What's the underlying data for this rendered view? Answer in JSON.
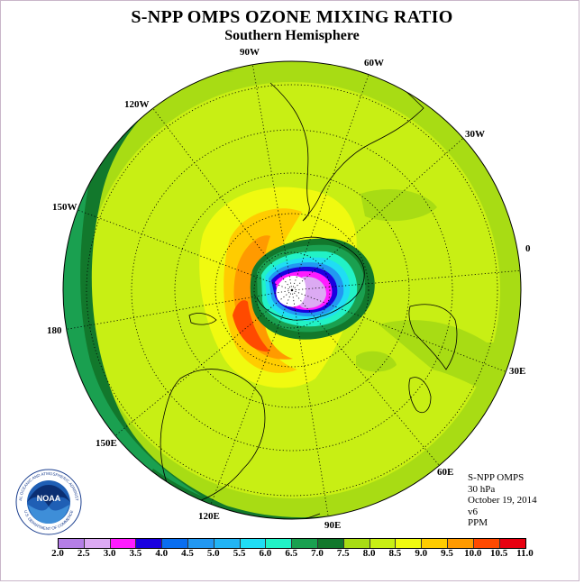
{
  "header": {
    "title": "S-NPP OMPS OZONE MIXING RATIO",
    "subtitle": "Southern Hemisphere"
  },
  "map": {
    "projection": "south-polar-stereographic",
    "longitude_labels": [
      {
        "id": "90w",
        "text": "90W"
      },
      {
        "id": "60w",
        "text": "60W"
      },
      {
        "id": "30w",
        "text": "30W"
      },
      {
        "id": "0",
        "text": "0"
      },
      {
        "id": "30e",
        "text": "30E"
      },
      {
        "id": "60e",
        "text": "60E"
      },
      {
        "id": "90e",
        "text": "90E"
      },
      {
        "id": "120e",
        "text": "120E"
      },
      {
        "id": "150e",
        "text": "150E"
      },
      {
        "id": "180",
        "text": "180"
      },
      {
        "id": "150w",
        "text": "150W"
      },
      {
        "id": "120w",
        "text": "120W"
      }
    ],
    "ozone_field": {
      "units": "PPM",
      "min_near_pole": 2.0,
      "max_outer_ring": 7.0,
      "orange_band_peak": 10.0
    }
  },
  "info": {
    "instrument": "S-NPP OMPS",
    "level": "30 hPa",
    "date": "October 19, 2014",
    "version": "v6",
    "units": "PPM"
  },
  "logo": {
    "text": "NOAA",
    "ring_text": "NATIONAL OCEANIC AND ATMOSPHERIC ADMINISTRATION",
    "ring_text_bottom": "U.S. DEPARTMENT OF COMMERCE"
  },
  "colorbar": {
    "labels": [
      "2.0",
      "2.5",
      "3.0",
      "3.5",
      "4.0",
      "4.5",
      "5.0",
      "5.5",
      "6.0",
      "6.5",
      "7.0",
      "7.5",
      "8.0",
      "8.5",
      "9.0",
      "9.5",
      "10.0",
      "10.5",
      "11.0"
    ],
    "colors": [
      "#b57fe6",
      "#dcaaf3",
      "#ff1cff",
      "#1a00e0",
      "#0a6ef0",
      "#2298f2",
      "#22b4f4",
      "#20ddf4",
      "#22f2c6",
      "#1aa050",
      "#12782c",
      "#a8dc14",
      "#c8ef14",
      "#f0fa10",
      "#ffcc00",
      "#ff9a00",
      "#ff4a00",
      "#e80010",
      "#86542c"
    ]
  }
}
